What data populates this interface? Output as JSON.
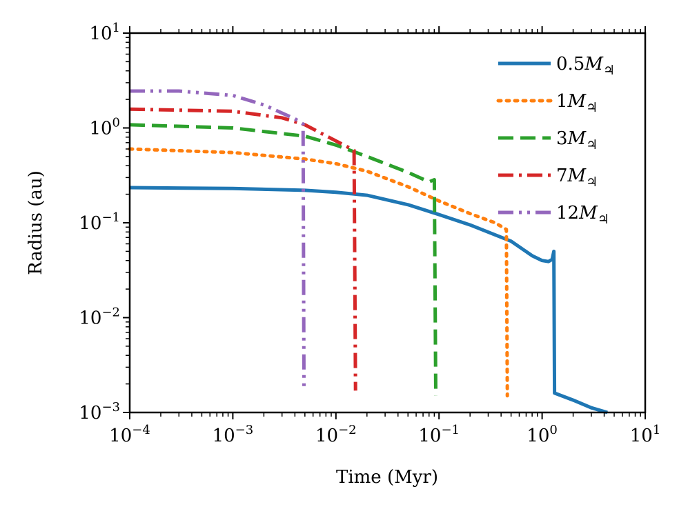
{
  "chart_data": {
    "type": "line",
    "xlabel": "Time (Myr)",
    "ylabel": "Radius (au)",
    "xscale": "log",
    "yscale": "log",
    "xlim": [
      0.0001,
      10
    ],
    "ylim": [
      0.001,
      10
    ],
    "grid": false,
    "legend_position": "top-right",
    "x_ticks": [
      {
        "value": 0.0001,
        "base": "10",
        "exp": "−4"
      },
      {
        "value": 0.001,
        "base": "10",
        "exp": "−3"
      },
      {
        "value": 0.01,
        "base": "10",
        "exp": "−2"
      },
      {
        "value": 0.1,
        "base": "10",
        "exp": "−1"
      },
      {
        "value": 1,
        "base": "10",
        "exp": "0"
      },
      {
        "value": 10,
        "base": "10",
        "exp": "1"
      }
    ],
    "y_ticks": [
      {
        "value": 0.001,
        "base": "10",
        "exp": "−3"
      },
      {
        "value": 0.01,
        "base": "10",
        "exp": "−2"
      },
      {
        "value": 0.1,
        "base": "10",
        "exp": "−1"
      },
      {
        "value": 1,
        "base": "10",
        "exp": "0"
      },
      {
        "value": 10,
        "base": "10",
        "exp": "1"
      }
    ],
    "series": [
      {
        "name": "0.5M♃",
        "color": "#1f77b4",
        "dash": "solid",
        "points": [
          [
            0.0001,
            0.235
          ],
          [
            0.001,
            0.23
          ],
          [
            0.005,
            0.22
          ],
          [
            0.01,
            0.21
          ],
          [
            0.02,
            0.195
          ],
          [
            0.05,
            0.155
          ],
          [
            0.1,
            0.122
          ],
          [
            0.2,
            0.095
          ],
          [
            0.5,
            0.064
          ],
          [
            0.8,
            0.045
          ],
          [
            1.0,
            0.04
          ],
          [
            1.15,
            0.039
          ],
          [
            1.25,
            0.041
          ],
          [
            1.3,
            0.05
          ],
          [
            1.32,
            0.0016
          ],
          [
            2.0,
            0.00135
          ],
          [
            3.0,
            0.00112
          ],
          [
            4.3,
            0.001
          ]
        ]
      },
      {
        "name": "1M♃",
        "color": "#ff7f0e",
        "dash": "dotted",
        "points": [
          [
            0.0001,
            0.6
          ],
          [
            0.001,
            0.55
          ],
          [
            0.005,
            0.47
          ],
          [
            0.01,
            0.42
          ],
          [
            0.02,
            0.35
          ],
          [
            0.05,
            0.24
          ],
          [
            0.1,
            0.17
          ],
          [
            0.2,
            0.125
          ],
          [
            0.35,
            0.1
          ],
          [
            0.45,
            0.085
          ],
          [
            0.46,
            0.0015
          ]
        ]
      },
      {
        "name": "3M♃",
        "color": "#2ca02c",
        "dash": "dashed",
        "points": [
          [
            0.0001,
            1.08
          ],
          [
            0.001,
            1.0
          ],
          [
            0.005,
            0.82
          ],
          [
            0.01,
            0.66
          ],
          [
            0.02,
            0.5
          ],
          [
            0.05,
            0.34
          ],
          [
            0.08,
            0.27
          ],
          [
            0.09,
            0.285
          ],
          [
            0.093,
            0.0015
          ]
        ]
      },
      {
        "name": "7M♃",
        "color": "#d62728",
        "dash": "dashdot",
        "points": [
          [
            0.0001,
            1.58
          ],
          [
            0.001,
            1.5
          ],
          [
            0.003,
            1.28
          ],
          [
            0.005,
            1.08
          ],
          [
            0.01,
            0.73
          ],
          [
            0.015,
            0.58
          ],
          [
            0.0155,
            0.0017
          ]
        ]
      },
      {
        "name": "12M♃",
        "color": "#9467bd",
        "dash": "dashdotdot",
        "points": [
          [
            0.0001,
            2.45
          ],
          [
            0.0003,
            2.45
          ],
          [
            0.001,
            2.2
          ],
          [
            0.002,
            1.75
          ],
          [
            0.004,
            1.25
          ],
          [
            0.0048,
            1.1
          ],
          [
            0.0049,
            0.0018
          ]
        ]
      }
    ],
    "legend": [
      {
        "prefix": "0.5",
        "M": "M",
        "sub": "♃"
      },
      {
        "prefix": "1",
        "M": "M",
        "sub": "♃"
      },
      {
        "prefix": "3",
        "M": "M",
        "sub": "♃"
      },
      {
        "prefix": "7",
        "M": "M",
        "sub": "♃"
      },
      {
        "prefix": "12",
        "M": "M",
        "sub": "♃"
      }
    ]
  }
}
